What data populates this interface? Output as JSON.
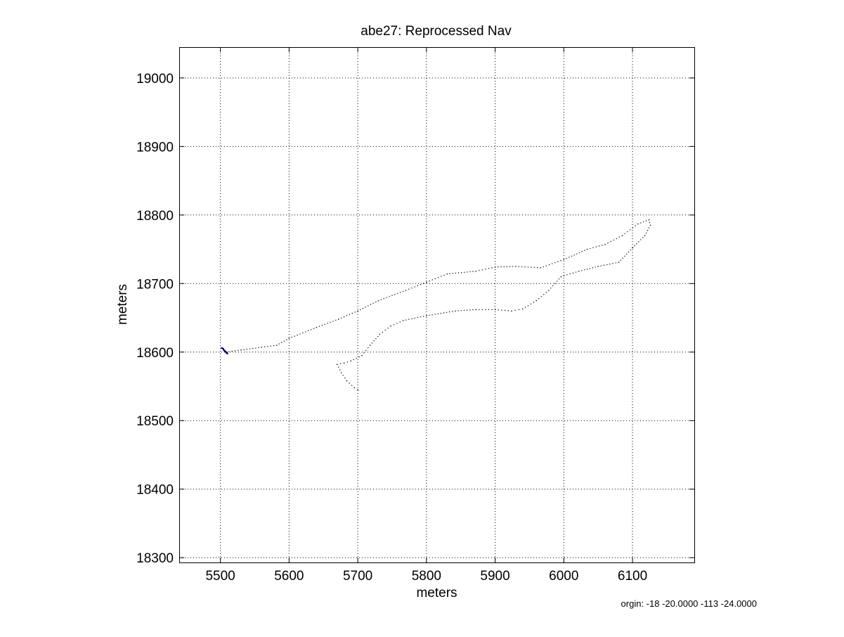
{
  "chart_data": {
    "type": "scatter",
    "title": "abe27: Reprocessed Nav",
    "xlabel": "meters",
    "ylabel": "meters",
    "xlim": [
      5440,
      6190
    ],
    "ylim": [
      18293,
      19045
    ],
    "xticks": [
      5500,
      5600,
      5700,
      5800,
      5900,
      6000,
      6100
    ],
    "yticks": [
      18300,
      18400,
      18500,
      18600,
      18700,
      18800,
      18900,
      19000
    ],
    "xtick_labels": [
      "5500",
      "5600",
      "5700",
      "5800",
      "5900",
      "6000",
      "6100"
    ],
    "ytick_labels": [
      "18300",
      "18400",
      "18500",
      "18600",
      "18700",
      "18800",
      "18900",
      "19000"
    ],
    "grid": true,
    "marker": "dots",
    "series": [
      {
        "color": "#000000",
        "x": [
          5508,
          5530,
          5560,
          5582,
          5600,
          5640,
          5672,
          5700,
          5730,
          5770,
          5800,
          5830,
          5872,
          5900,
          5930,
          5966,
          6000,
          6034,
          6060,
          6085,
          6108,
          6124,
          6126,
          6118,
          6100,
          6080,
          6050,
          6022,
          5996,
          5978,
          5960,
          5940,
          5924,
          5900,
          5872,
          5842,
          5800,
          5766,
          5748,
          5732,
          5718,
          5706,
          5690,
          5680,
          5670,
          5676,
          5684,
          5695,
          5700
        ],
        "y": [
          18600,
          18603,
          18607,
          18610,
          18620,
          18636,
          18648,
          18660,
          18675,
          18690,
          18702,
          18714,
          18718,
          18724,
          18725,
          18723,
          18735,
          18750,
          18757,
          18770,
          18787,
          18793,
          18785,
          18770,
          18752,
          18731,
          18725,
          18718,
          18710,
          18690,
          18675,
          18663,
          18660,
          18662,
          18662,
          18660,
          18653,
          18646,
          18638,
          18626,
          18610,
          18595,
          18587,
          18584,
          18582,
          18570,
          18558,
          18548,
          18545
        ]
      },
      {
        "color": "#000080",
        "x": [
          5502,
          5505,
          5508,
          5510,
          5507,
          5504,
          5506,
          5509
        ],
        "y": [
          18606,
          18603,
          18600,
          18598,
          18601,
          18605,
          18602,
          18599
        ]
      }
    ]
  },
  "footer_note": "orgin: -18 -20.0000 -113 -24.0000"
}
